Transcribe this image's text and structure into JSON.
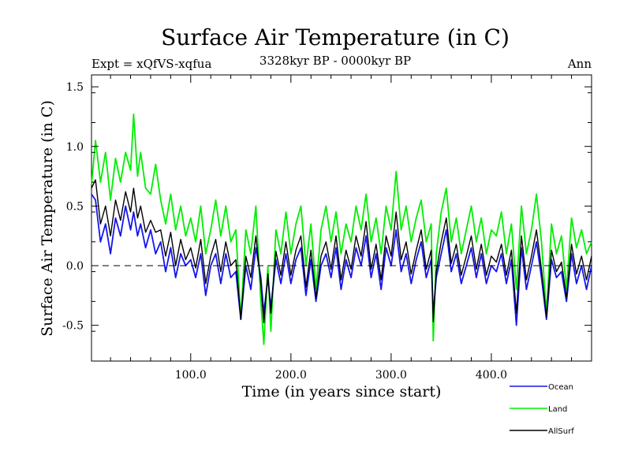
{
  "chart_data": {
    "type": "line",
    "title": "Surface Air Temperature (in C)",
    "subtitle": "3328kyr BP - 0000kyr BP",
    "experiment_label": "Expt = xQfVS-xqfua",
    "season_label": "Ann",
    "xlabel": "Time (in years since start)",
    "ylabel": "Surface Air Temperature (in C)",
    "xlim": [
      1,
      500
    ],
    "ylim": [
      -0.8,
      1.6
    ],
    "x_ticks": [
      100,
      200,
      300,
      400
    ],
    "x_tick_labels": [
      "100.0",
      "200.0",
      "300.0",
      "400.0"
    ],
    "y_ticks": [
      -0.5,
      0.0,
      0.5,
      1.0,
      1.5
    ],
    "y_tick_labels": [
      "-0.5",
      "0.0",
      "0.5",
      "1.0",
      "1.5"
    ],
    "zero_line": 0.0,
    "legend_position": "bottom-right",
    "series": [
      {
        "name": "Land",
        "color": "#00ee00",
        "x": [
          1,
          5,
          10,
          15,
          20,
          25,
          30,
          35,
          40,
          43,
          47,
          50,
          55,
          60,
          65,
          70,
          75,
          80,
          85,
          90,
          95,
          100,
          105,
          110,
          115,
          120,
          125,
          130,
          135,
          140,
          145,
          150,
          155,
          160,
          165,
          170,
          173,
          177,
          180,
          185,
          190,
          195,
          200,
          205,
          210,
          215,
          220,
          225,
          230,
          235,
          240,
          245,
          250,
          255,
          260,
          265,
          270,
          275,
          280,
          285,
          290,
          295,
          300,
          305,
          310,
          315,
          320,
          325,
          330,
          335,
          340,
          342,
          345,
          350,
          355,
          360,
          365,
          370,
          375,
          380,
          385,
          390,
          395,
          400,
          405,
          410,
          415,
          420,
          425,
          430,
          435,
          440,
          445,
          450,
          455,
          460,
          465,
          470,
          475,
          480,
          485,
          490,
          495,
          500
        ],
        "values": [
          0.68,
          1.05,
          0.7,
          0.95,
          0.55,
          0.9,
          0.7,
          0.95,
          0.8,
          1.27,
          0.75,
          0.95,
          0.65,
          0.6,
          0.85,
          0.55,
          0.35,
          0.6,
          0.3,
          0.5,
          0.25,
          0.4,
          0.2,
          0.5,
          0.1,
          0.3,
          0.55,
          0.25,
          0.5,
          0.2,
          0.3,
          -0.45,
          0.3,
          0.1,
          0.5,
          -0.3,
          -0.66,
          0.0,
          -0.55,
          0.3,
          0.1,
          0.45,
          0.1,
          0.35,
          0.5,
          0.0,
          0.35,
          -0.2,
          0.3,
          0.5,
          0.2,
          0.45,
          0.1,
          0.35,
          0.2,
          0.5,
          0.3,
          0.6,
          0.2,
          0.4,
          0.1,
          0.5,
          0.3,
          0.79,
          0.3,
          0.5,
          0.2,
          0.4,
          0.55,
          0.2,
          0.35,
          -0.63,
          0.1,
          0.45,
          0.65,
          0.2,
          0.4,
          0.1,
          0.3,
          0.5,
          0.2,
          0.4,
          0.1,
          0.3,
          0.25,
          0.45,
          0.1,
          0.35,
          -0.2,
          0.5,
          0.1,
          0.3,
          0.6,
          0.2,
          -0.4,
          0.35,
          0.1,
          0.25,
          -0.2,
          0.4,
          0.15,
          0.3,
          0.1,
          0.2
        ]
      },
      {
        "name": "Ocean",
        "color": "#1515ee",
        "x": [
          1,
          5,
          10,
          15,
          20,
          25,
          30,
          35,
          40,
          43,
          47,
          50,
          55,
          60,
          65,
          70,
          75,
          80,
          85,
          90,
          95,
          100,
          105,
          110,
          115,
          120,
          125,
          130,
          135,
          140,
          145,
          150,
          155,
          160,
          165,
          170,
          173,
          177,
          180,
          185,
          190,
          195,
          200,
          205,
          210,
          215,
          220,
          225,
          230,
          235,
          240,
          245,
          250,
          255,
          260,
          265,
          270,
          275,
          280,
          285,
          290,
          295,
          300,
          305,
          310,
          315,
          320,
          325,
          330,
          335,
          340,
          342,
          345,
          350,
          355,
          360,
          365,
          370,
          375,
          380,
          385,
          390,
          395,
          400,
          405,
          410,
          415,
          420,
          425,
          430,
          435,
          440,
          445,
          450,
          455,
          460,
          465,
          470,
          475,
          480,
          485,
          490,
          495,
          500
        ],
        "values": [
          0.6,
          0.55,
          0.2,
          0.35,
          0.1,
          0.4,
          0.25,
          0.5,
          0.3,
          0.45,
          0.25,
          0.35,
          0.15,
          0.3,
          0.1,
          0.2,
          -0.05,
          0.15,
          -0.1,
          0.1,
          0.0,
          0.05,
          -0.1,
          0.1,
          -0.25,
          0.0,
          0.1,
          -0.15,
          0.1,
          -0.1,
          -0.05,
          -0.45,
          0.0,
          -0.2,
          0.15,
          -0.1,
          -0.4,
          -0.1,
          -0.35,
          0.05,
          -0.15,
          0.1,
          -0.15,
          0.05,
          0.15,
          -0.25,
          0.05,
          -0.3,
          0.0,
          0.1,
          -0.1,
          0.15,
          -0.2,
          0.05,
          -0.1,
          0.15,
          0.0,
          0.25,
          -0.1,
          0.1,
          -0.2,
          0.15,
          0.0,
          0.3,
          -0.05,
          0.1,
          -0.15,
          0.05,
          0.2,
          -0.1,
          0.05,
          -0.4,
          -0.1,
          0.1,
          0.3,
          -0.05,
          0.1,
          -0.15,
          0.0,
          0.15,
          -0.1,
          0.1,
          -0.15,
          0.0,
          -0.05,
          0.1,
          -0.15,
          0.05,
          -0.5,
          0.15,
          -0.2,
          0.0,
          0.2,
          -0.1,
          -0.45,
          0.05,
          -0.1,
          -0.05,
          -0.3,
          0.1,
          -0.15,
          0.0,
          -0.2,
          0.0
        ]
      },
      {
        "name": "AllSurf",
        "color": "#000000",
        "x": [
          1,
          5,
          10,
          15,
          20,
          25,
          30,
          35,
          40,
          43,
          47,
          50,
          55,
          60,
          65,
          70,
          75,
          80,
          85,
          90,
          95,
          100,
          105,
          110,
          115,
          120,
          125,
          130,
          135,
          140,
          145,
          150,
          155,
          160,
          165,
          170,
          173,
          177,
          180,
          185,
          190,
          195,
          200,
          205,
          210,
          215,
          220,
          225,
          230,
          235,
          240,
          245,
          250,
          255,
          260,
          265,
          270,
          275,
          280,
          285,
          290,
          295,
          300,
          305,
          310,
          315,
          320,
          325,
          330,
          335,
          340,
          342,
          345,
          350,
          355,
          360,
          365,
          370,
          375,
          380,
          385,
          390,
          395,
          400,
          405,
          410,
          415,
          420,
          425,
          430,
          435,
          440,
          445,
          450,
          455,
          460,
          465,
          470,
          475,
          480,
          485,
          490,
          495,
          500
        ],
        "values": [
          0.65,
          0.72,
          0.35,
          0.5,
          0.25,
          0.55,
          0.38,
          0.62,
          0.45,
          0.65,
          0.4,
          0.5,
          0.28,
          0.38,
          0.28,
          0.3,
          0.08,
          0.28,
          0.0,
          0.22,
          0.05,
          0.15,
          -0.02,
          0.22,
          -0.15,
          0.08,
          0.22,
          -0.05,
          0.2,
          0.0,
          0.05,
          -0.45,
          0.08,
          -0.1,
          0.25,
          -0.15,
          -0.48,
          -0.07,
          -0.4,
          0.12,
          -0.08,
          0.2,
          -0.08,
          0.13,
          0.25,
          -0.18,
          0.13,
          -0.27,
          0.08,
          0.2,
          -0.03,
          0.25,
          -0.12,
          0.13,
          -0.03,
          0.25,
          0.08,
          0.37,
          -0.03,
          0.18,
          -0.12,
          0.25,
          0.08,
          0.45,
          0.05,
          0.2,
          -0.07,
          0.13,
          0.3,
          -0.03,
          0.13,
          -0.47,
          -0.05,
          0.2,
          0.4,
          0.02,
          0.18,
          -0.08,
          0.08,
          0.25,
          -0.03,
          0.18,
          -0.08,
          0.08,
          0.03,
          0.18,
          -0.08,
          0.13,
          -0.4,
          0.25,
          -0.12,
          0.08,
          0.3,
          -0.03,
          -0.43,
          0.13,
          -0.05,
          0.03,
          -0.27,
          0.18,
          -0.07,
          0.08,
          -0.12,
          0.08
        ]
      }
    ]
  }
}
